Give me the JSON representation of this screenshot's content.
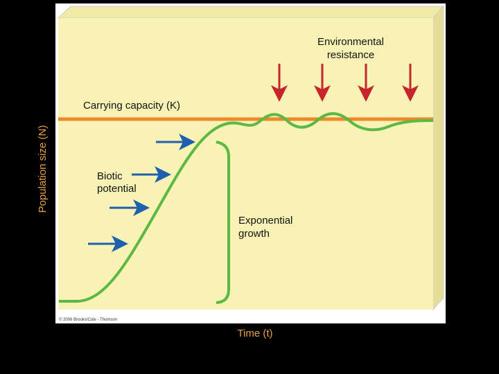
{
  "diagram": {
    "environmental_resistance": [
      "Environmental",
      "resistance"
    ],
    "carrying_capacity": "Carrying capacity (K)",
    "biotic_potential": [
      "Biotic",
      "potential"
    ],
    "exponential_growth": [
      "Exponential",
      "growth"
    ],
    "y_axis_label": "Population size (N)",
    "x_axis_label": "Time (t)",
    "credit": "© 2006 Brooks/Cole - Thomson"
  }
}
